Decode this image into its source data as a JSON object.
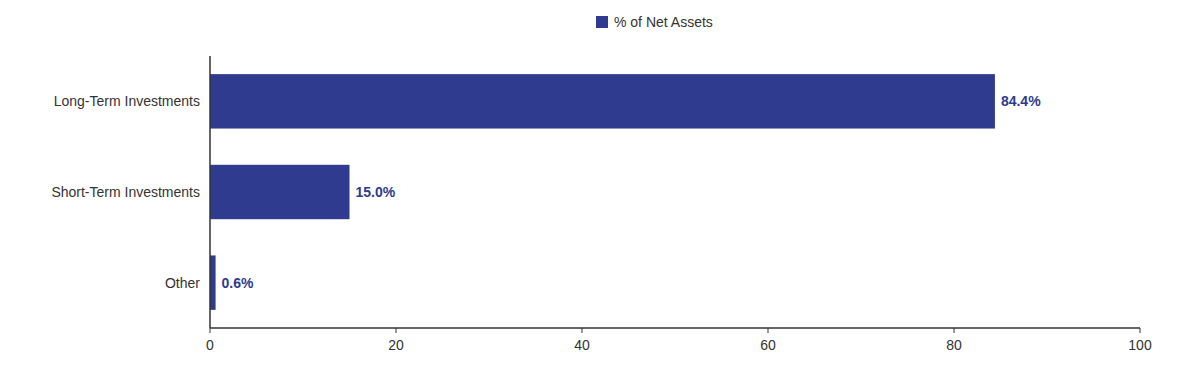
{
  "chart_data": {
    "type": "bar",
    "orientation": "horizontal",
    "categories": [
      "Long-Term Investments",
      "Short-Term Investments",
      "Other"
    ],
    "series": [
      {
        "name": "% of Net Assets",
        "color": "#2e3b8e",
        "values": [
          84.4,
          15.0,
          0.6
        ],
        "value_labels": [
          "84.4%",
          "15.0%",
          "0.6%"
        ]
      }
    ],
    "data_labels": true,
    "xlim": [
      0,
      100
    ],
    "xticks": [
      0,
      20,
      40,
      60,
      80,
      100
    ],
    "grid": false,
    "legend": "top"
  }
}
